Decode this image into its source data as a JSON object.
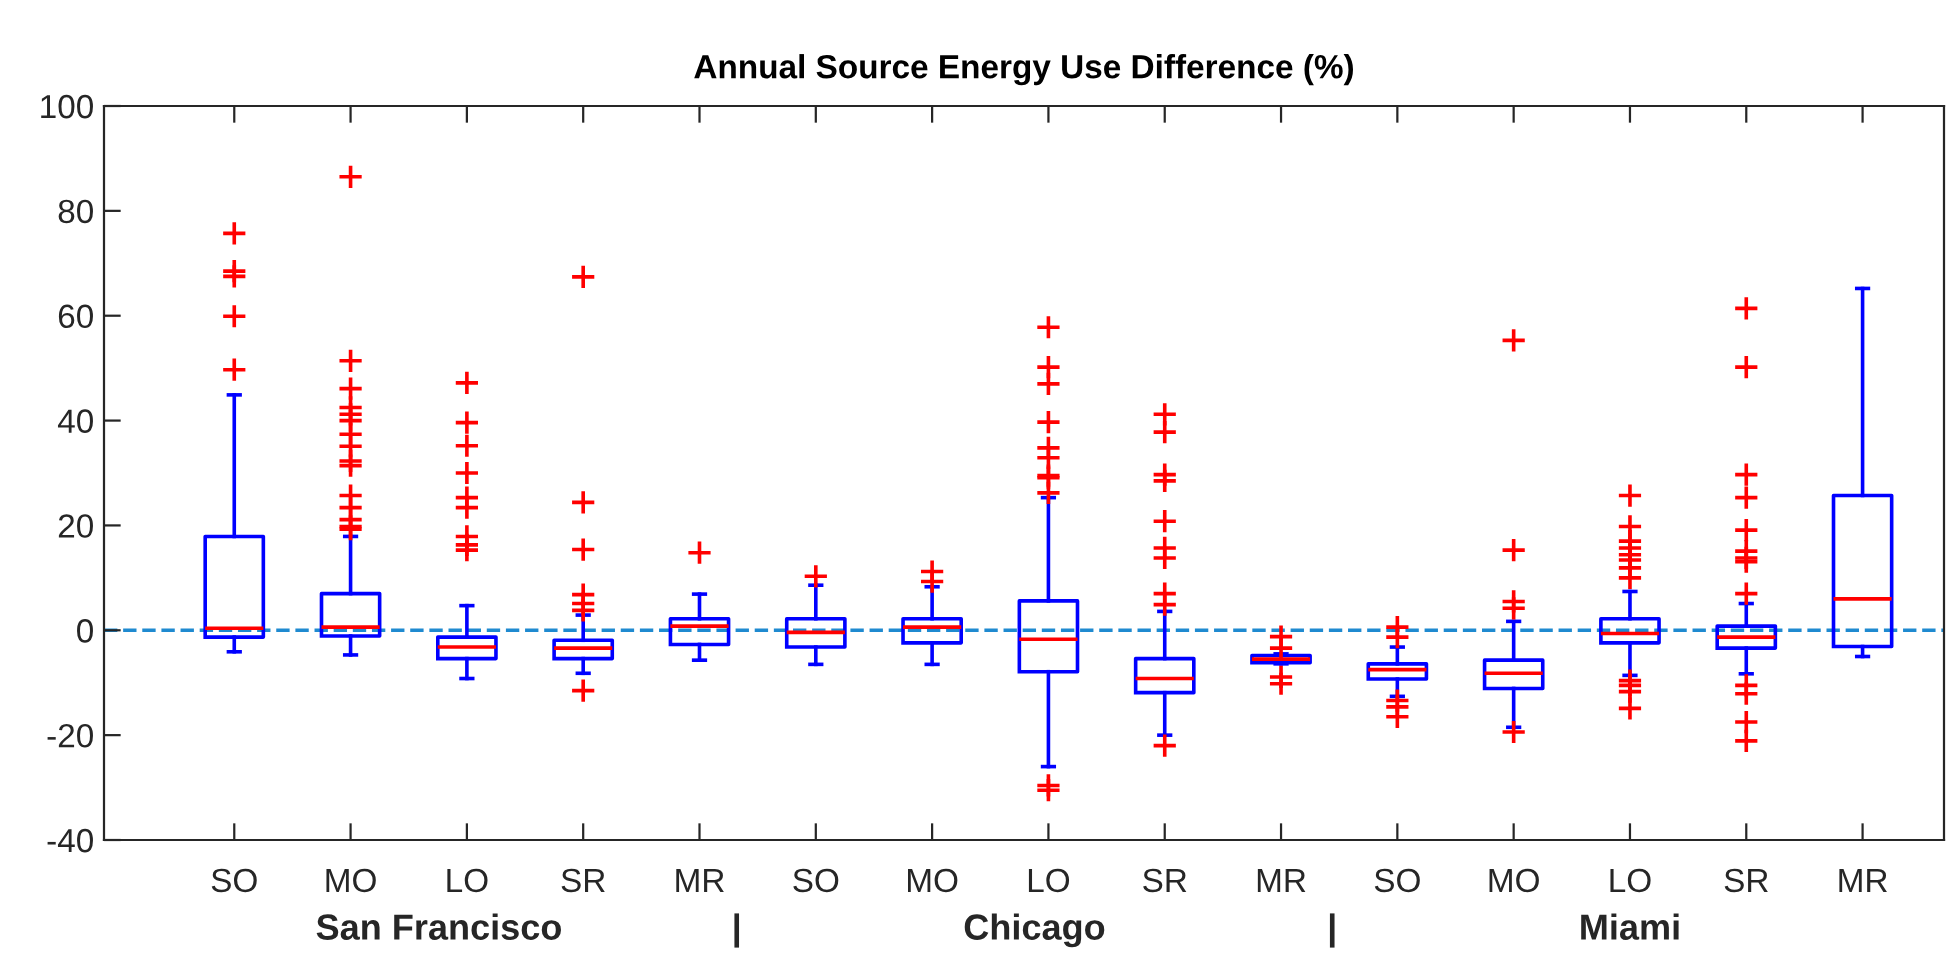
{
  "chart_data": {
    "type": "box",
    "title": "Annual Source Energy Use Difference (%)",
    "categories": [
      "SO",
      "MO",
      "LO",
      "SR",
      "MR",
      "SO",
      "MO",
      "LO",
      "SR",
      "MR",
      "SO",
      "MO",
      "LO",
      "SR",
      "MR"
    ],
    "annotations": [
      "San Francisco",
      "|",
      "Chicago",
      "|",
      "Miami"
    ],
    "ylim": [
      -40,
      100
    ],
    "yticks": [
      -40,
      -20,
      0,
      20,
      40,
      60,
      80,
      100
    ],
    "grid": false,
    "legend": false,
    "ref_lines": [
      {
        "axis": "y",
        "value": 0,
        "color": "#1f8ad0",
        "line_style": "dashed"
      }
    ],
    "series": [
      {
        "type": "box",
        "color": "#0000ff",
        "marker": "cross",
        "boxes": [
          {
            "low": -4.1,
            "q1": -1.3,
            "median": 0.4,
            "q3": 17.9,
            "high": 44.9,
            "outliers": [
              75.7,
              68.5,
              67.5,
              59.9,
              49.7
            ]
          },
          {
            "low": -4.7,
            "q1": -1.1,
            "median": 0.6,
            "q3": 7.0,
            "high": 17.9,
            "outliers": [
              86.5,
              51.4,
              46.1,
              42.5,
              41.2,
              40,
              37.4,
              35.1,
              32.3,
              31.4,
              25.7,
              23.4,
              21.1,
              19.8,
              19.3
            ]
          },
          {
            "low": -9.2,
            "q1": -5.4,
            "median": -3.2,
            "q3": -1.3,
            "high": 4.7,
            "outliers": [
              47.2,
              39.6,
              35.2,
              30,
              25.3,
              23.4,
              17.9,
              16.3,
              15.3
            ]
          },
          {
            "low": -8.2,
            "q1": -5.4,
            "median": -3.4,
            "q3": -1.9,
            "high": 2.9,
            "outliers": [
              67.4,
              24.4,
              15.4,
              6.8,
              5.1,
              3.8,
              -11.5
            ]
          },
          {
            "low": -5.7,
            "q1": -2.7,
            "median": 0.8,
            "q3": 2.2,
            "high": 6.9,
            "outliers": [
              14.8
            ]
          },
          {
            "low": -6.5,
            "q1": -3.2,
            "median": -0.4,
            "q3": 2.2,
            "high": 8.6,
            "outliers": [
              10.3
            ]
          },
          {
            "low": -6.5,
            "q1": -2.4,
            "median": 0.6,
            "q3": 2.2,
            "high": 8.3,
            "outliers": [
              11.2,
              9.3
            ]
          },
          {
            "low": -26,
            "q1": -7.9,
            "median": -1.7,
            "q3": 5.6,
            "high": 25.3,
            "outliers": [
              57.8,
              50.2,
              47,
              39.7,
              34.8,
              32.9,
              29.5,
              29.1,
              26.2,
              -29.6,
              -30.5
            ]
          },
          {
            "low": -20,
            "q1": -11.9,
            "median": -9.2,
            "q3": -5.4,
            "high": 3.6,
            "outliers": [
              41.2,
              37.8,
              29.7,
              28.5,
              20.8,
              15.7,
              13.8,
              7.0,
              4.9,
              -22
            ]
          },
          {
            "low": -6.4,
            "q1": -6.2,
            "median": -5.5,
            "q3": -4.8,
            "high": -4.5,
            "outliers": [
              -1.2,
              -3.4,
              -8.9,
              -10.2
            ]
          },
          {
            "low": -12.6,
            "q1": -9.3,
            "median": -7.5,
            "q3": -6.4,
            "high": -3.2,
            "outliers": [
              0.6,
              -1.3,
              -13.4,
              -14.6,
              -16.5
            ]
          },
          {
            "low": -18.5,
            "q1": -11.1,
            "median": -8.2,
            "q3": -5.7,
            "high": 1.7,
            "outliers": [
              55.3,
              15.3,
              5.5,
              4.2,
              -19.4
            ]
          },
          {
            "low": -8.6,
            "q1": -2.4,
            "median": -0.6,
            "q3": 2.2,
            "high": 7.4,
            "outliers": [
              25.7,
              19.8,
              17,
              15.7,
              14.4,
              13.4,
              11.9,
              10,
              -9.6,
              -10.5,
              -11.7,
              -14.9
            ]
          },
          {
            "low": -8.3,
            "q1": -3.4,
            "median": -1.3,
            "q3": 0.8,
            "high": 5.1,
            "outliers": [
              61.4,
              50.2,
              29.7,
              25.3,
              19.1,
              15.1,
              13.8,
              13.1,
              7.0,
              -10.5,
              -12.1,
              -17.5,
              -21.1
            ]
          },
          {
            "low": -5.0,
            "q1": -3.1,
            "median": 6,
            "q3": 25.7,
            "high": 65.2
          }
        ]
      }
    ]
  }
}
